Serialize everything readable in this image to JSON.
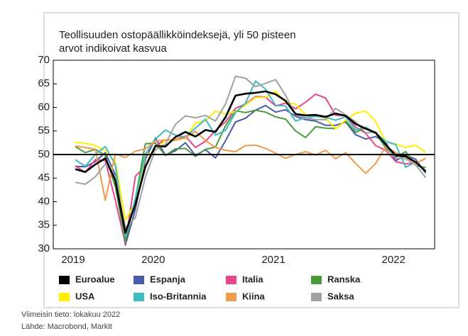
{
  "chart_data": {
    "type": "line",
    "title": "Teollisuuden ostopäällikköindeksejä, yli 50 pisteen arvot indikoivat kasvua",
    "title_lines": [
      "Teollisuuden ostopäällikköindeksejä, yli 50 pisteen",
      "arvot indikoivat kasvua"
    ],
    "categories": [
      "2019",
      null,
      null,
      null,
      null,
      null,
      null,
      null,
      "2020",
      null,
      null,
      null,
      null,
      null,
      null,
      null,
      null,
      null,
      null,
      null,
      "2021",
      null,
      null,
      null,
      null,
      null,
      null,
      null,
      null,
      null,
      null,
      null,
      "2022",
      null,
      null,
      null
    ],
    "ylim": [
      30,
      70
    ],
    "yticks": [
      30,
      35,
      40,
      45,
      50,
      55,
      60,
      65,
      70
    ],
    "reference_line": 50,
    "series": [
      {
        "name": "Euroalue",
        "color": "#000000",
        "values": [
          46.9,
          46.3,
          47.9,
          49.2,
          44.5,
          33.4,
          39.4,
          47.4,
          51.8,
          51.7,
          53.7,
          54.8,
          53.8,
          55.2,
          54.8,
          57.9,
          62.5,
          62.9,
          63.1,
          63.4,
          62.8,
          61.4,
          58.6,
          58.3,
          58.4,
          58.0,
          58.7,
          58.2,
          56.5,
          55.5,
          54.6,
          52.1,
          49.8,
          49.6,
          48.4,
          46.4
        ]
      },
      {
        "name": "Espanja",
        "color": "#4a5aa8",
        "values": [
          47.5,
          47.4,
          48.5,
          50.4,
          45.7,
          30.8,
          38.3,
          49.0,
          53.5,
          49.9,
          50.8,
          52.5,
          49.8,
          51.0,
          49.3,
          52.9,
          56.9,
          57.7,
          59.4,
          60.4,
          59.0,
          59.5,
          58.1,
          57.4,
          57.1,
          56.2,
          56.2,
          56.9,
          54.2,
          53.3,
          53.8,
          52.6,
          48.7,
          49.9,
          49.0,
          46.0
        ]
      },
      {
        "name": "Italia",
        "color": "#e8468c",
        "values": [
          47.6,
          46.2,
          48.9,
          48.7,
          40.3,
          31.1,
          45.4,
          47.5,
          51.9,
          53.1,
          53.2,
          53.9,
          51.5,
          52.8,
          55.1,
          56.9,
          59.8,
          60.7,
          62.3,
          62.2,
          60.3,
          60.9,
          59.7,
          61.1,
          62.8,
          62.0,
          58.3,
          58.3,
          55.8,
          54.5,
          51.9,
          50.9,
          48.5,
          48.0,
          48.3,
          46.5
        ]
      },
      {
        "name": "Ranska",
        "color": "#4c9a3c",
        "values": [
          51.7,
          50.4,
          51.1,
          49.8,
          43.2,
          31.5,
          40.6,
          52.3,
          52.4,
          49.8,
          51.2,
          51.3,
          49.6,
          51.1,
          51.6,
          56.1,
          59.3,
          58.9,
          59.4,
          59.0,
          58.0,
          57.5,
          55.0,
          53.6,
          55.9,
          55.6,
          55.5,
          57.2,
          54.7,
          55.7,
          54.6,
          51.4,
          49.5,
          50.6,
          47.7,
          47.2
        ]
      },
      {
        "name": "USA",
        "color": "#fff000",
        "values": [
          52.6,
          52.4,
          51.9,
          50.7,
          48.5,
          36.1,
          39.8,
          49.8,
          50.9,
          53.1,
          53.2,
          53.4,
          56.7,
          57.1,
          59.2,
          58.6,
          59.1,
          60.5,
          62.1,
          62.1,
          63.4,
          61.1,
          60.7,
          58.4,
          58.3,
          57.7,
          55.5,
          57.3,
          58.8,
          59.2,
          57.0,
          52.7,
          52.2,
          51.5,
          52.0,
          50.4
        ]
      },
      {
        "name": "Iso-Britannia",
        "color": "#3cbcc0",
        "values": [
          48.9,
          47.5,
          50.0,
          51.7,
          47.8,
          32.6,
          40.7,
          50.1,
          53.3,
          55.2,
          54.1,
          53.7,
          55.6,
          57.5,
          54.1,
          55.1,
          58.9,
          60.9,
          65.6,
          63.9,
          60.4,
          60.3,
          57.1,
          57.8,
          58.1,
          57.9,
          57.3,
          58.0,
          55.2,
          55.8,
          54.6,
          52.8,
          52.1,
          47.3,
          48.4,
          46.2
        ]
      },
      {
        "name": "Kiina",
        "color": "#f09a4a",
        "values": [
          51.8,
          51.5,
          51.1,
          40.3,
          50.1,
          49.4,
          50.7,
          51.2,
          52.8,
          53.1,
          53.0,
          53.6,
          54.9,
          53.0,
          51.5,
          50.9,
          50.6,
          51.9,
          52.0,
          51.3,
          50.3,
          49.2,
          50.0,
          50.6,
          49.9,
          50.9,
          49.1,
          50.4,
          48.1,
          46.0,
          48.1,
          51.7,
          50.4,
          49.5,
          48.1,
          49.2
        ]
      },
      {
        "name": "Saksa",
        "color": "#a0a0a0",
        "values": [
          44.1,
          43.7,
          45.3,
          48.0,
          45.4,
          34.5,
          36.6,
          45.2,
          51.0,
          52.2,
          56.4,
          58.2,
          57.8,
          58.3,
          57.1,
          60.7,
          66.6,
          66.2,
          64.4,
          65.1,
          65.9,
          62.6,
          58.4,
          57.8,
          57.4,
          57.4,
          59.8,
          58.4,
          56.9,
          54.6,
          54.8,
          52.0,
          49.3,
          49.1,
          47.8,
          45.1
        ]
      }
    ],
    "notes": [
      "Viimeisin tieto: lokakuu 2022",
      "Lähde: Macrobond, Markit"
    ]
  }
}
